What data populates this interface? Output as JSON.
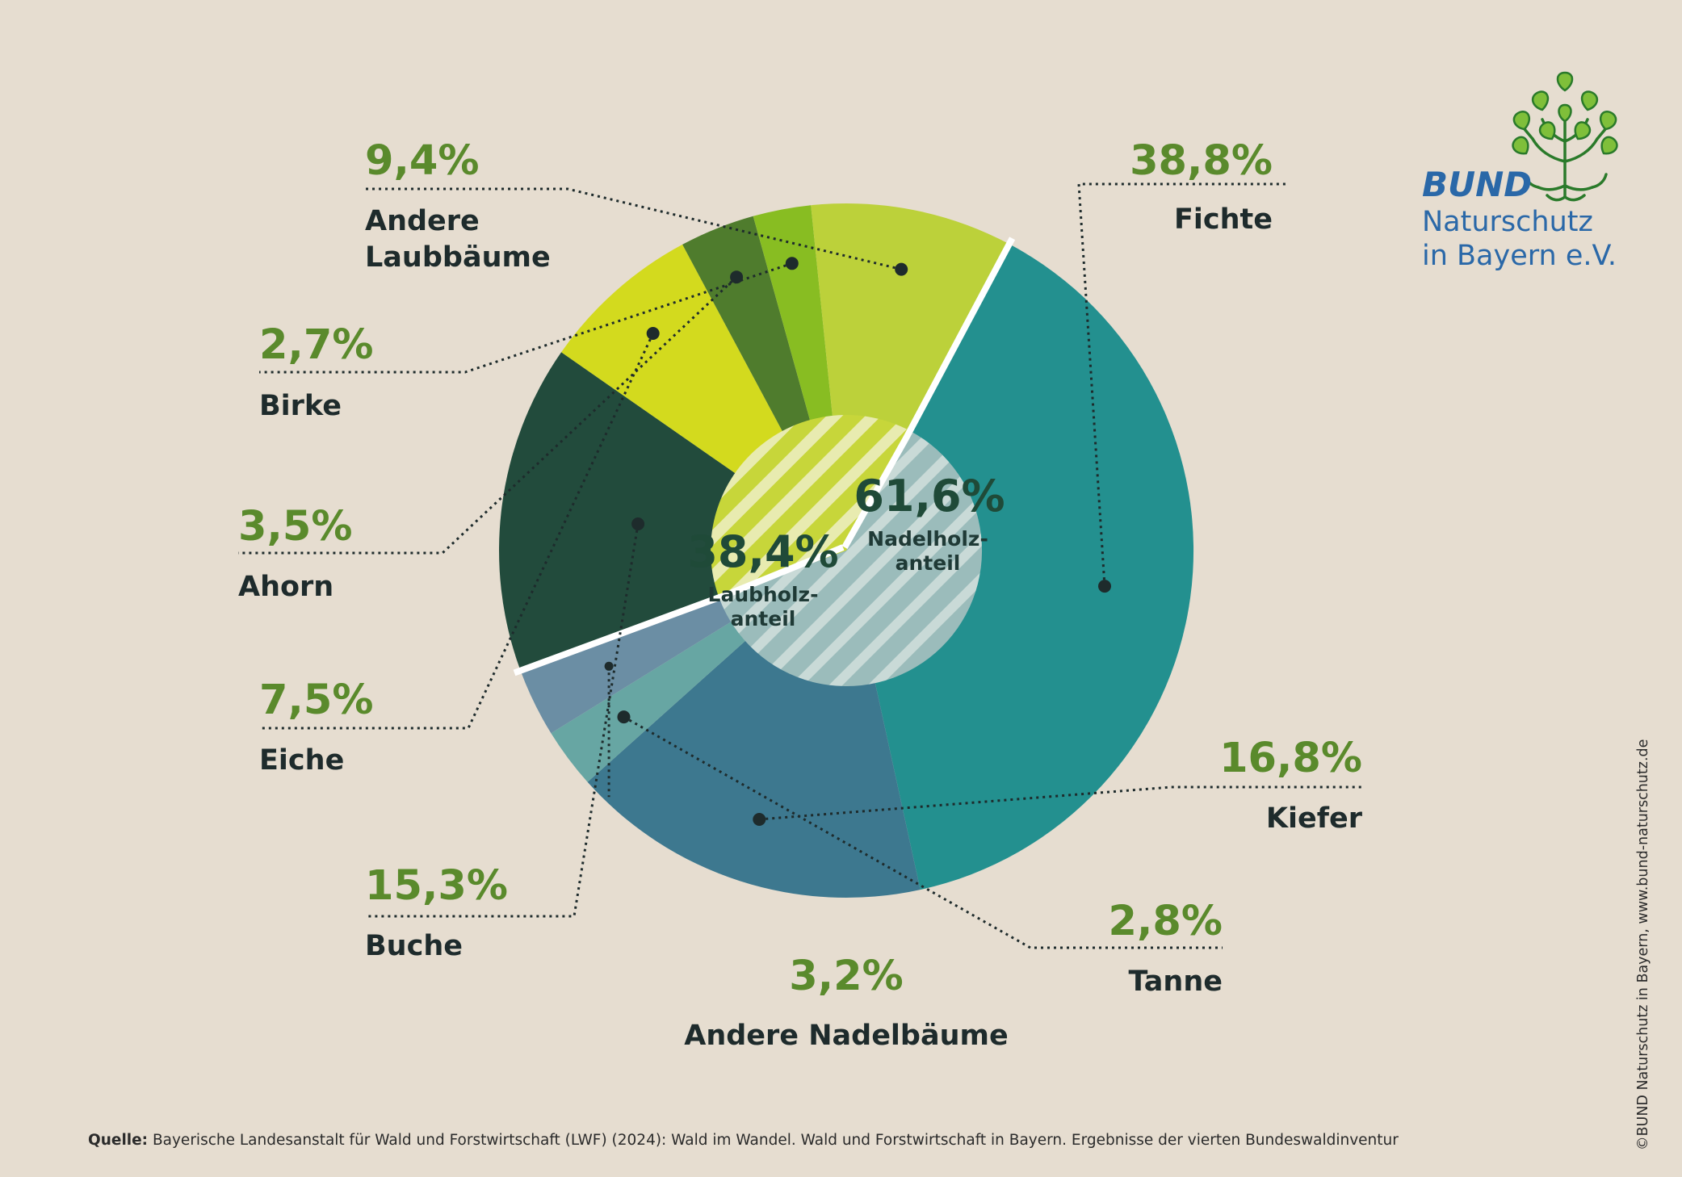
{
  "chart_data": {
    "type": "pie",
    "variant": "donut",
    "title": "",
    "slices": [
      {
        "name": "Fichte",
        "value": 38.8,
        "label": "38,8%",
        "color": "#23908f"
      },
      {
        "name": "Kiefer",
        "value": 16.8,
        "label": "16,8%",
        "color": "#3d788f"
      },
      {
        "name": "Tanne",
        "value": 2.8,
        "label": "2,8%",
        "color": "#67a6a3"
      },
      {
        "name": "Andere Nadelbäume",
        "value": 3.2,
        "label": "3,2%",
        "color": "#6b8ea4"
      },
      {
        "name": "Buche",
        "value": 15.3,
        "label": "15,3%",
        "color": "#224b3c"
      },
      {
        "name": "Eiche",
        "value": 7.5,
        "label": "7,5%",
        "color": "#d3da1e"
      },
      {
        "name": "Ahorn",
        "value": 3.5,
        "label": "3,5%",
        "color": "#4f7c2d"
      },
      {
        "name": "Birke",
        "value": 2.7,
        "label": "2,7%",
        "color": "#88bd22"
      },
      {
        "name": "Andere Laubbäume",
        "value": 9.4,
        "label": "9,4%",
        "color": "#bcd13a"
      }
    ],
    "groups": [
      {
        "name": "Nadelholzanteil",
        "value": 61.6,
        "label": "61,6%",
        "line1": "Nadelholz-",
        "line2": "anteil",
        "color": "#9bbcbb"
      },
      {
        "name": "Laubholzanteil",
        "value": 38.4,
        "label": "38,4%",
        "line1": "Laubholz-",
        "line2": "anteil",
        "color": "#e1e69a"
      }
    ]
  },
  "brand": {
    "name": "BUND",
    "line1": "Naturschutz",
    "line2": "in Bayern e.V.",
    "logo_icon": "tree-icon",
    "color": "#2a68a8",
    "leaf_color": "#7fbf3a"
  },
  "footer": {
    "source_label": "Quelle:",
    "source_text": " Bayerische Landesanstalt für Wald und Forstwirtschaft (LWF) (2024): Wald im Wandel. Wald und Forstwirtschaft in Bayern. Ergebnisse der vierten Bundeswaldinventur",
    "copyright": "©BUND Naturschutz in Bayern, www.bund-naturschutz.de"
  }
}
